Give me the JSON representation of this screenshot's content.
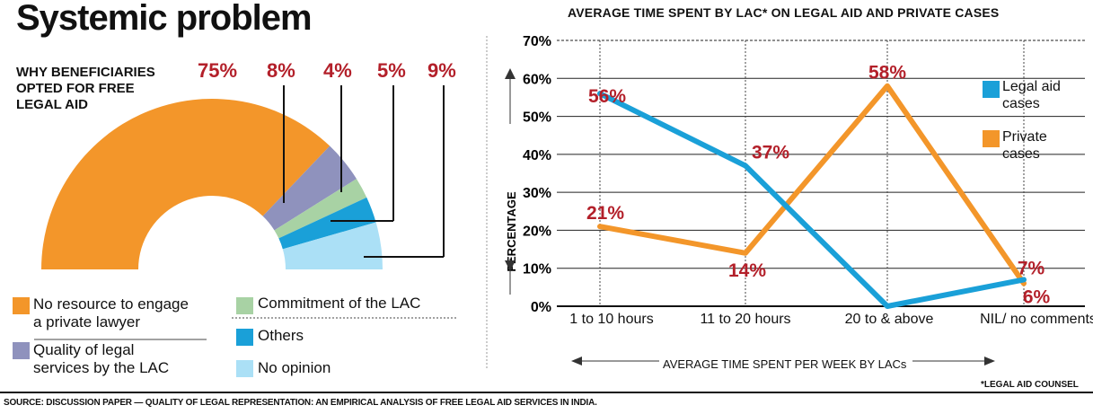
{
  "header": {
    "title": "Systemic problem",
    "right_title": "AVERAGE TIME SPENT BY LAC* ON LEGAL AID AND PRIVATE CASES"
  },
  "donut": {
    "question": "WHY BENEFICIARIES\nOPTED FOR FREE\nLEGAL AID",
    "percent_labels": [
      "75%",
      "8%",
      "4%",
      "5%",
      "9%"
    ],
    "legend": [
      {
        "label": "No resource to engage a private lawyer",
        "color": "#f3962a"
      },
      {
        "label": "Quality of legal services by the LAC",
        "color": "#8f92bd"
      },
      {
        "label": "Commitment of the LAC",
        "color": "#a8d2a4"
      },
      {
        "label": "Others",
        "color": "#1aa0d8"
      },
      {
        "label": "No opinion",
        "color": "#abe0f6"
      }
    ],
    "legend_text": {
      "l0a": "No resource to engage",
      "l0b": "a private lawyer",
      "l1a": "Quality of legal",
      "l1b": "services by the LAC",
      "l2": "Commitment of the LAC",
      "l3": "Others",
      "l4": "No opinion"
    }
  },
  "chart_data": [
    {
      "type": "pie",
      "title": "WHY BENEFICIARIES OPTED FOR FREE LEGAL AID",
      "categories": [
        "No resource to engage a private lawyer",
        "Quality of legal services by the LAC",
        "Commitment of the LAC",
        "Others",
        "No opinion"
      ],
      "values": [
        75,
        8,
        4,
        5,
        9
      ]
    },
    {
      "type": "line",
      "title": "AVERAGE TIME SPENT BY LAC* ON LEGAL AID AND PRIVATE CASES",
      "categories": [
        "1 to 10 hours",
        "11 to 20 hours",
        "20 to & above",
        "NIL/ no comments"
      ],
      "series": [
        {
          "name": "Legal aid cases",
          "values": [
            56,
            37,
            0,
            7
          ],
          "color": "#1aa0d8"
        },
        {
          "name": "Private cases",
          "values": [
            21,
            14,
            58,
            6
          ],
          "color": "#f3962a"
        }
      ],
      "data_labels": [
        "56%",
        "37%",
        "21%",
        "14%",
        "58%",
        "7%",
        "6%"
      ],
      "ylabel": "PERCENTAGE",
      "xlabel": "AVERAGE TIME SPENT PER WEEK BY LACs",
      "ylim": [
        0,
        70
      ],
      "yticks": [
        "0%",
        "10%",
        "20%",
        "30%",
        "40%",
        "50%",
        "60%",
        "70%"
      ],
      "grid": true,
      "legend_position": "right"
    }
  ],
  "legend_right": {
    "legal_aid_a": "Legal aid",
    "legal_aid_b": "cases",
    "private_a": "Private",
    "private_b": "cases"
  },
  "footer": {
    "footnote": "*LEGAL AID COUNSEL",
    "source": "SOURCE: DISCUSSION PAPER — QUALITY OF LEGAL REPRESENTATION: AN EMPIRICAL ANALYSIS OF FREE LEGAL AID SERVICES IN INDIA."
  }
}
